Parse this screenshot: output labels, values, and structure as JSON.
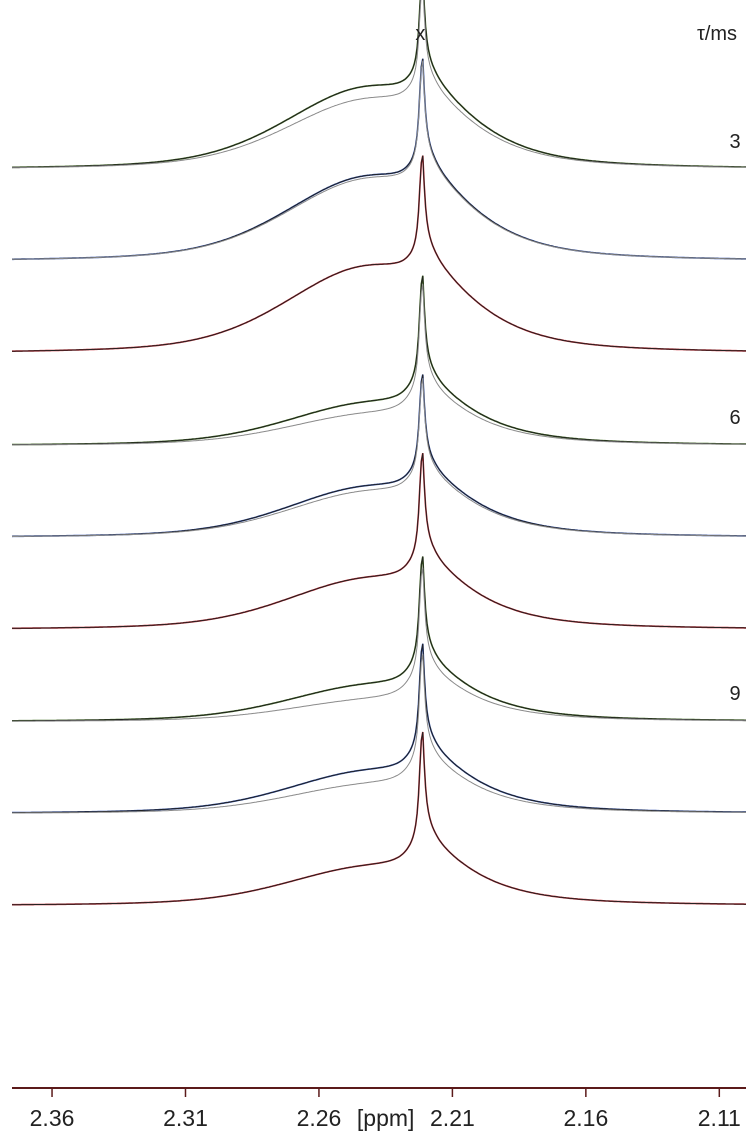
{
  "chart_data": {
    "type": "line",
    "title": "",
    "xlabel": "[ppm]",
    "ylabel": "",
    "xlim": [
      2.375,
      2.1
    ],
    "x_reversed": true,
    "x_ticks": [
      "2.36",
      "2.31",
      "2.26",
      "2.21",
      "2.16",
      "2.11"
    ],
    "x_tick_values": [
      2.36,
      2.31,
      2.26,
      2.21,
      2.16,
      2.11
    ],
    "peak_marker": {
      "label": "x",
      "x": 2.222
    },
    "tau_header": "τ/ms",
    "tau_labels": [
      {
        "text": "3",
        "trace": 0
      },
      {
        "text": "6",
        "trace": 3
      },
      {
        "text": "9",
        "trace": 6
      }
    ],
    "colors": {
      "green": "#3f6e1a",
      "blue": "#2b4fb0",
      "red": "#c8202a",
      "black": "#222222",
      "gray": "#8a8a8a",
      "axis": "#5b1a1a"
    },
    "broad_peak_x": 2.242,
    "sharp_peak_x": 2.2215,
    "traces": [
      {
        "tau": "3",
        "color": "green",
        "broad_height": 0.66,
        "sharp_height": 1.0,
        "fit_broad_height": 0.56
      },
      {
        "tau": "3",
        "color": "blue",
        "broad_height": 0.68,
        "sharp_height": 1.05,
        "fit_broad_height": 0.66
      },
      {
        "tau": "3",
        "color": "red",
        "broad_height": 0.7,
        "sharp_height": 1.0,
        "fit_broad_height": 0.7
      },
      {
        "tau": "6",
        "color": "green",
        "broad_height": 0.33,
        "sharp_height": 1.05,
        "fit_broad_height": 0.24
      },
      {
        "tau": "6",
        "color": "blue",
        "broad_height": 0.4,
        "sharp_height": 0.95,
        "fit_broad_height": 0.36
      },
      {
        "tau": "6",
        "color": "red",
        "broad_height": 0.4,
        "sharp_height": 1.05,
        "fit_broad_height": 0.4
      },
      {
        "tau": "9",
        "color": "green",
        "broad_height": 0.28,
        "sharp_height": 1.05,
        "fit_broad_height": 0.16
      },
      {
        "tau": "9",
        "color": "blue",
        "broad_height": 0.33,
        "sharp_height": 1.05,
        "fit_broad_height": 0.22
      },
      {
        "tau": "9",
        "color": "red",
        "broad_height": 0.3,
        "sharp_height": 1.1,
        "fit_broad_height": 0.3
      }
    ]
  }
}
